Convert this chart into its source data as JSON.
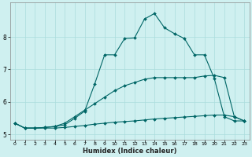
{
  "xlabel": "Humidex (Indice chaleur)",
  "bg_color": "#cff0f0",
  "grid_color": "#aadddd",
  "line_color": "#006666",
  "xlim": [
    -0.5,
    23.5
  ],
  "ylim": [
    4.85,
    9.05
  ],
  "xticks": [
    0,
    1,
    2,
    3,
    4,
    5,
    6,
    7,
    8,
    9,
    10,
    11,
    12,
    13,
    14,
    15,
    16,
    17,
    18,
    19,
    20,
    21,
    22,
    23
  ],
  "yticks": [
    5,
    6,
    7,
    8
  ],
  "line1_x": [
    0,
    1,
    2,
    3,
    4,
    5,
    6,
    7,
    8,
    9,
    10,
    11,
    12,
    13,
    14,
    15,
    16,
    17,
    18,
    19,
    20,
    21,
    22,
    23
  ],
  "line1_y": [
    5.35,
    5.2,
    5.2,
    5.2,
    5.2,
    5.22,
    5.25,
    5.28,
    5.32,
    5.35,
    5.38,
    5.4,
    5.42,
    5.45,
    5.48,
    5.5,
    5.52,
    5.54,
    5.56,
    5.58,
    5.6,
    5.6,
    5.55,
    5.42
  ],
  "line2_x": [
    0,
    1,
    2,
    3,
    4,
    5,
    6,
    7,
    8,
    9,
    10,
    11,
    12,
    13,
    14,
    15,
    16,
    17,
    18,
    19,
    20,
    21,
    22,
    23
  ],
  "line2_y": [
    5.35,
    5.2,
    5.2,
    5.22,
    5.25,
    5.35,
    5.55,
    5.75,
    5.95,
    6.15,
    6.35,
    6.5,
    6.6,
    6.7,
    6.75,
    6.75,
    6.75,
    6.75,
    6.75,
    6.8,
    6.82,
    6.75,
    5.55,
    5.42
  ],
  "line3_x": [
    0,
    1,
    2,
    3,
    4,
    5,
    6,
    7,
    8,
    9,
    10,
    11,
    12,
    13,
    14,
    15,
    16,
    17,
    18,
    19,
    20,
    21,
    22,
    23
  ],
  "line3_y": [
    5.35,
    5.2,
    5.2,
    5.22,
    5.25,
    5.3,
    5.5,
    5.72,
    6.55,
    7.45,
    7.45,
    7.95,
    7.97,
    8.55,
    8.72,
    8.28,
    8.1,
    7.95,
    7.45,
    7.45,
    6.72,
    5.55,
    5.42,
    5.42
  ]
}
